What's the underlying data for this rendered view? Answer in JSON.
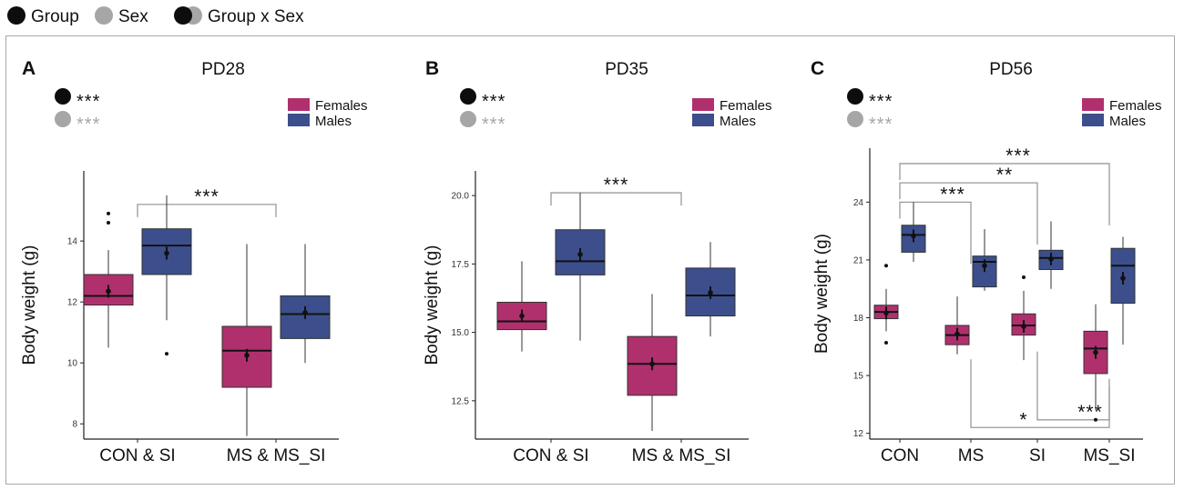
{
  "legend": {
    "group_label": "Group",
    "sex_label": "Sex",
    "interaction_label": "Group x Sex",
    "group_color": "#0d0d0d",
    "sex_color": "#a6a6a6"
  },
  "colors": {
    "females": "#b0306e",
    "males": "#3c4f8c"
  },
  "chart_data": [
    {
      "type": "box",
      "panel_letter": "A",
      "title": "PD28",
      "ylabel": "Body weight (g)",
      "xlabel": "",
      "ylim": [
        7.5,
        16.3
      ],
      "yticks": [
        8,
        10,
        12,
        14
      ],
      "categories": [
        "CON & SI",
        "MS & MS_SI"
      ],
      "stats": {
        "group": "***",
        "sex": "***"
      },
      "legend": [
        "Females",
        "Males"
      ],
      "series": [
        {
          "name": "Females",
          "boxes": [
            {
              "min": 10.5,
              "q1": 11.9,
              "median": 12.2,
              "q3": 12.9,
              "max": 13.7,
              "mean": 12.35,
              "outliers": [
                14.6,
                14.9
              ]
            },
            {
              "min": 7.6,
              "q1": 9.2,
              "median": 10.4,
              "q3": 11.2,
              "max": 13.9,
              "mean": 10.25,
              "outliers": []
            }
          ]
        },
        {
          "name": "Males",
          "boxes": [
            {
              "min": 11.4,
              "q1": 12.9,
              "median": 13.85,
              "q3": 14.4,
              "max": 15.5,
              "mean": 13.6,
              "outliers": [
                10.3
              ]
            },
            {
              "min": 10.0,
              "q1": 10.8,
              "median": 11.6,
              "q3": 12.2,
              "max": 13.9,
              "mean": 11.65,
              "outliers": []
            }
          ]
        }
      ],
      "comparisons": [
        {
          "from": 0,
          "to": 1,
          "y": 15.2,
          "label": "***"
        }
      ]
    },
    {
      "type": "box",
      "panel_letter": "B",
      "title": "PD35",
      "ylabel": "Body weight (g)",
      "xlabel": "",
      "ylim": [
        11.1,
        20.9
      ],
      "yticks": [
        12.5,
        15.0,
        17.5,
        20.0
      ],
      "categories": [
        "CON & SI",
        "MS & MS_SI"
      ],
      "stats": {
        "group": "***",
        "sex": "***"
      },
      "legend": [
        "Females",
        "Males"
      ],
      "series": [
        {
          "name": "Females",
          "boxes": [
            {
              "min": 14.3,
              "q1": 15.1,
              "median": 15.4,
              "q3": 16.1,
              "max": 17.6,
              "mean": 15.6,
              "outliers": []
            },
            {
              "min": 11.4,
              "q1": 12.7,
              "median": 13.85,
              "q3": 14.85,
              "max": 16.4,
              "mean": 13.85,
              "outliers": []
            }
          ]
        },
        {
          "name": "Males",
          "boxes": [
            {
              "min": 14.7,
              "q1": 17.1,
              "median": 17.6,
              "q3": 18.75,
              "max": 20.1,
              "mean": 17.85,
              "outliers": []
            },
            {
              "min": 14.85,
              "q1": 15.6,
              "median": 16.35,
              "q3": 17.35,
              "max": 18.3,
              "mean": 16.45,
              "outliers": []
            }
          ]
        }
      ],
      "comparisons": [
        {
          "from": 0,
          "to": 1,
          "y": 20.1,
          "label": "***"
        }
      ]
    },
    {
      "type": "box",
      "panel_letter": "C",
      "title": "PD56",
      "ylabel": "Body weight (g)",
      "xlabel": "",
      "ylim": [
        11.7,
        26.8
      ],
      "yticks": [
        12,
        15,
        18,
        21,
        24
      ],
      "categories": [
        "CON",
        "MS",
        "SI",
        "MS_SI"
      ],
      "stats": {
        "group": "***",
        "sex": "***"
      },
      "legend": [
        "Females",
        "Males"
      ],
      "series": [
        {
          "name": "Females",
          "boxes": [
            {
              "min": 17.3,
              "q1": 17.95,
              "median": 18.3,
              "q3": 18.65,
              "max": 19.5,
              "mean": 18.25,
              "outliers": [
                20.7,
                16.7
              ]
            },
            {
              "min": 16.1,
              "q1": 16.6,
              "median": 17.1,
              "q3": 17.6,
              "max": 19.1,
              "mean": 17.15,
              "outliers": []
            },
            {
              "min": 15.8,
              "q1": 17.1,
              "median": 17.6,
              "q3": 18.2,
              "max": 19.4,
              "mean": 17.55,
              "outliers": [
                20.1
              ]
            },
            {
              "min": 13.2,
              "q1": 15.1,
              "median": 16.4,
              "q3": 17.3,
              "max": 18.7,
              "mean": 16.2,
              "outliers": [
                12.7
              ]
            }
          ]
        },
        {
          "name": "Males",
          "boxes": [
            {
              "min": 20.9,
              "q1": 21.4,
              "median": 22.3,
              "q3": 22.8,
              "max": 24.0,
              "mean": 22.25,
              "outliers": []
            },
            {
              "min": 19.4,
              "q1": 19.6,
              "median": 20.9,
              "q3": 21.2,
              "max": 22.6,
              "mean": 20.7,
              "outliers": []
            },
            {
              "min": 19.5,
              "q1": 20.5,
              "median": 21.1,
              "q3": 21.5,
              "max": 23.0,
              "mean": 21.05,
              "outliers": []
            },
            {
              "min": 16.6,
              "q1": 18.75,
              "median": 20.7,
              "q3": 21.6,
              "max": 22.2,
              "mean": 20.05,
              "outliers": []
            }
          ]
        }
      ],
      "comparisons": [
        {
          "from": 0,
          "to": 1,
          "y": 24.0,
          "label": "***",
          "side": "top"
        },
        {
          "from": 0,
          "to": 2,
          "y": 25.0,
          "label": "**",
          "side": "top"
        },
        {
          "from": 0,
          "to": 3,
          "y": 26.0,
          "label": "***",
          "side": "top"
        },
        {
          "from": 1,
          "to": 3,
          "y": 12.3,
          "label": "*",
          "side": "bottom"
        },
        {
          "from": 2,
          "to": 3,
          "y": 12.7,
          "label": "***",
          "side": "bottom"
        }
      ]
    }
  ]
}
